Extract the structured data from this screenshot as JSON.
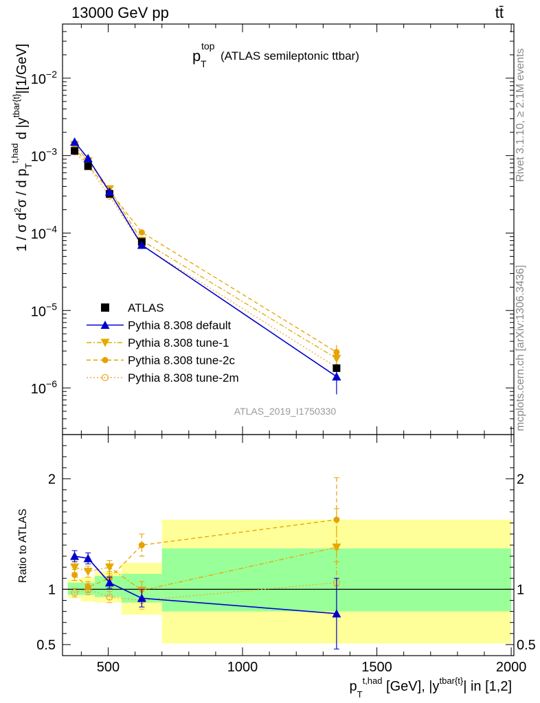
{
  "header": {
    "left": "13000 GeV pp",
    "right": "tt̄"
  },
  "side_labels": {
    "rivet": "Rivet 3.1.10, ≥ 2.1M events",
    "mcplots": "mcplots.cern.ch [arXiv:1306.3436]"
  },
  "chart_data": {
    "type": "line",
    "title": {
      "main": "p",
      "main_sup": "top",
      "main_sub": "T",
      "rest": "(ATLAS semileptonic ttbar)"
    },
    "analysis_id": "ATLAS_2019_I1750330",
    "upper": {
      "ylabel": "1 / σ d²σ / d p_T^{t,had} d |y^{tbar{t}}|[1/GeV]",
      "yscale": "log",
      "ylim": [
        2.5e-07,
        0.05
      ],
      "yticks": [
        {
          "value": 1e-06,
          "base": "10",
          "exp": "−6"
        },
        {
          "value": 1e-05,
          "base": "10",
          "exp": "−5"
        },
        {
          "value": 0.0001,
          "base": "10",
          "exp": "−4"
        },
        {
          "value": 0.001,
          "base": "10",
          "exp": "−3"
        },
        {
          "value": 0.01,
          "base": "10",
          "exp": "−2"
        }
      ]
    },
    "lower": {
      "ylabel": "Ratio to ATLAS",
      "ylim": [
        0.4,
        2.4
      ],
      "yticks": [
        {
          "value": 0.5,
          "label": "0.5"
        },
        {
          "value": 1,
          "label": "1"
        },
        {
          "value": 2,
          "label": "2"
        }
      ]
    },
    "xlim": [
      330,
      2010
    ],
    "xticks": [
      {
        "value": 500,
        "label": "500"
      },
      {
        "value": 1000,
        "label": "1000"
      },
      {
        "value": 1500,
        "label": "1500"
      },
      {
        "value": 2000,
        "label": "2000"
      }
    ],
    "xlabel": "p_T^{t,had} [GeV], |y^{tbar{t}}| in [1,2]",
    "data": {
      "name": "ATLAS",
      "x": [
        375,
        425,
        505,
        625,
        1350
      ],
      "y": [
        0.00115,
        0.00073,
        0.00032,
        7.7e-05,
        1.8e-06
      ],
      "bin_edges": [
        350,
        400,
        450,
        550,
        700,
        2000
      ],
      "band_stat": [
        [
          0.95,
          1.06
        ],
        [
          0.95,
          1.06
        ],
        [
          0.93,
          1.12
        ],
        [
          0.88,
          1.14
        ],
        [
          0.8,
          1.37
        ]
      ],
      "band_total": [
        [
          0.92,
          1.09
        ],
        [
          0.89,
          1.11
        ],
        [
          0.88,
          1.16
        ],
        [
          0.77,
          1.24
        ],
        [
          0.51,
          1.63
        ]
      ]
    },
    "series": [
      {
        "name": "Pythia 8.308 default",
        "color": "#0000cc",
        "linestyle": "solid",
        "marker": "triangle-up",
        "x": [
          375,
          425,
          505,
          625,
          1350
        ],
        "y": [
          0.0015,
          0.00092,
          0.00034,
          7e-05,
          1.4e-06
        ],
        "ratio": [
          1.3,
          1.28,
          1.06,
          0.92,
          0.78
        ],
        "ratio_err": [
          0.05,
          0.05,
          0.05,
          0.08,
          0.32
        ]
      },
      {
        "name": "Pythia 8.308 tune-1",
        "color": "#e6a800",
        "linestyle": "dashdot",
        "marker": "triangle-down",
        "x": [
          375,
          425,
          505,
          625,
          1350
        ],
        "y": [
          0.00138,
          0.00085,
          0.00037,
          8e-05,
          2.4e-06
        ],
        "ratio": [
          1.2,
          1.16,
          1.2,
          0.99,
          1.38
        ],
        "ratio_err": [
          0.05,
          0.05,
          0.06,
          0.08,
          0.35
        ]
      },
      {
        "name": "Pythia 8.308 tune-2c",
        "color": "#e6a000",
        "linestyle": "dashed",
        "marker": "circle",
        "x": [
          375,
          425,
          505,
          625,
          1350
        ],
        "y": [
          0.00128,
          0.00075,
          0.00035,
          0.000102,
          2.9e-06
        ],
        "ratio": [
          1.13,
          1.02,
          1.1,
          1.4,
          1.63
        ],
        "ratio_err": [
          0.05,
          0.05,
          0.06,
          0.1,
          0.38
        ]
      },
      {
        "name": "Pythia 8.308 tune-2m",
        "color": "#f0a830",
        "linestyle": "dotted",
        "marker": "circle-open",
        "x": [
          375,
          425,
          505,
          625,
          1350
        ],
        "y": [
          0.00112,
          0.00073,
          0.0003,
          6.9e-05,
          1.85e-06
        ],
        "ratio": [
          0.97,
          1.0,
          0.93,
          0.9,
          1.06
        ],
        "ratio_err": [
          0.04,
          0.05,
          0.05,
          0.08,
          0.3
        ]
      }
    ],
    "legend": {
      "placement": "lower-left",
      "entries": [
        "ATLAS",
        "Pythia 8.308 default",
        "Pythia 8.308 tune-1",
        "Pythia 8.308 tune-2c",
        "Pythia 8.308 tune-2m"
      ]
    }
  }
}
